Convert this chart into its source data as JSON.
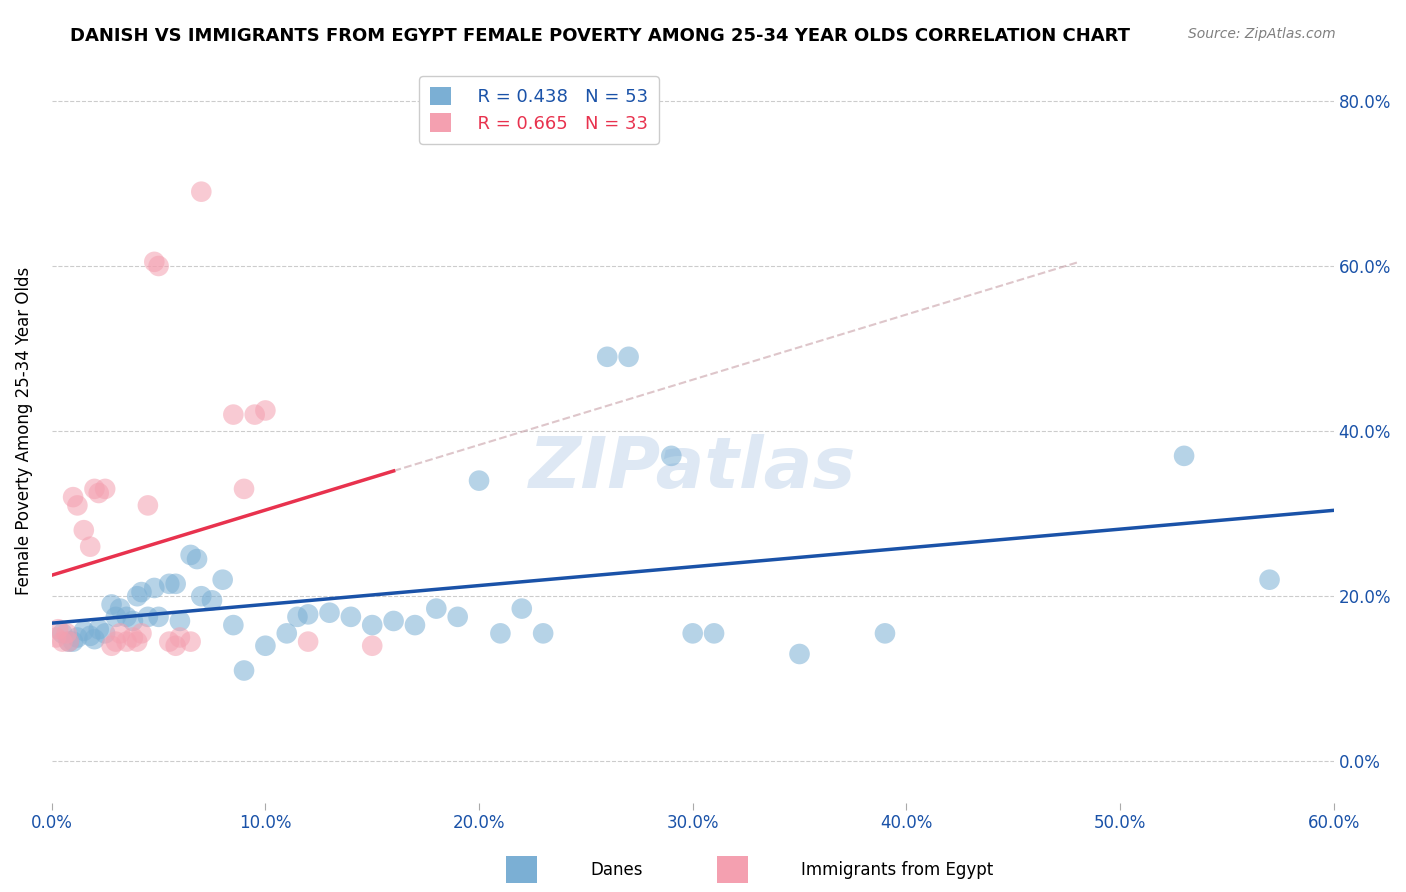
{
  "title": "DANISH VS IMMIGRANTS FROM EGYPT FEMALE POVERTY AMONG 25-34 YEAR OLDS CORRELATION CHART",
  "source": "Source: ZipAtlas.com",
  "xlabel": "",
  "ylabel": "Female Poverty Among 25-34 Year Olds",
  "xmin": 0.0,
  "xmax": 0.6,
  "ymin": -0.05,
  "ymax": 0.85,
  "watermark": "ZIPatlas",
  "blue_R": "R = 0.438",
  "blue_N": "N = 53",
  "pink_R": "R = 0.665",
  "pink_N": "N = 33",
  "blue_color": "#7bafd4",
  "pink_color": "#f4a0b0",
  "blue_line_color": "#1a52a8",
  "pink_line_color": "#e8324e",
  "danes_label": "Danes",
  "egypt_label": "Immigrants from Egypt",
  "blue_scatter": [
    [
      0.005,
      0.155
    ],
    [
      0.008,
      0.145
    ],
    [
      0.01,
      0.145
    ],
    [
      0.012,
      0.15
    ],
    [
      0.015,
      0.158
    ],
    [
      0.018,
      0.152
    ],
    [
      0.02,
      0.148
    ],
    [
      0.022,
      0.16
    ],
    [
      0.025,
      0.155
    ],
    [
      0.028,
      0.19
    ],
    [
      0.03,
      0.175
    ],
    [
      0.032,
      0.185
    ],
    [
      0.035,
      0.175
    ],
    [
      0.038,
      0.17
    ],
    [
      0.04,
      0.2
    ],
    [
      0.042,
      0.205
    ],
    [
      0.045,
      0.175
    ],
    [
      0.048,
      0.21
    ],
    [
      0.05,
      0.175
    ],
    [
      0.055,
      0.215
    ],
    [
      0.058,
      0.215
    ],
    [
      0.06,
      0.17
    ],
    [
      0.065,
      0.25
    ],
    [
      0.068,
      0.245
    ],
    [
      0.07,
      0.2
    ],
    [
      0.075,
      0.195
    ],
    [
      0.08,
      0.22
    ],
    [
      0.085,
      0.165
    ],
    [
      0.09,
      0.11
    ],
    [
      0.1,
      0.14
    ],
    [
      0.11,
      0.155
    ],
    [
      0.115,
      0.175
    ],
    [
      0.12,
      0.178
    ],
    [
      0.13,
      0.18
    ],
    [
      0.14,
      0.175
    ],
    [
      0.15,
      0.165
    ],
    [
      0.16,
      0.17
    ],
    [
      0.17,
      0.165
    ],
    [
      0.18,
      0.185
    ],
    [
      0.19,
      0.175
    ],
    [
      0.2,
      0.34
    ],
    [
      0.21,
      0.155
    ],
    [
      0.22,
      0.185
    ],
    [
      0.23,
      0.155
    ],
    [
      0.26,
      0.49
    ],
    [
      0.27,
      0.49
    ],
    [
      0.29,
      0.37
    ],
    [
      0.3,
      0.155
    ],
    [
      0.31,
      0.155
    ],
    [
      0.35,
      0.13
    ],
    [
      0.39,
      0.155
    ],
    [
      0.53,
      0.37
    ],
    [
      0.57,
      0.22
    ]
  ],
  "pink_scatter": [
    [
      0.002,
      0.15
    ],
    [
      0.003,
      0.16
    ],
    [
      0.005,
      0.145
    ],
    [
      0.007,
      0.155
    ],
    [
      0.008,
      0.145
    ],
    [
      0.01,
      0.32
    ],
    [
      0.012,
      0.31
    ],
    [
      0.015,
      0.28
    ],
    [
      0.018,
      0.26
    ],
    [
      0.02,
      0.33
    ],
    [
      0.022,
      0.325
    ],
    [
      0.025,
      0.33
    ],
    [
      0.028,
      0.14
    ],
    [
      0.03,
      0.145
    ],
    [
      0.032,
      0.155
    ],
    [
      0.035,
      0.145
    ],
    [
      0.038,
      0.15
    ],
    [
      0.04,
      0.145
    ],
    [
      0.042,
      0.155
    ],
    [
      0.045,
      0.31
    ],
    [
      0.048,
      0.605
    ],
    [
      0.05,
      0.6
    ],
    [
      0.055,
      0.145
    ],
    [
      0.058,
      0.14
    ],
    [
      0.06,
      0.15
    ],
    [
      0.065,
      0.145
    ],
    [
      0.07,
      0.69
    ],
    [
      0.085,
      0.42
    ],
    [
      0.09,
      0.33
    ],
    [
      0.095,
      0.42
    ],
    [
      0.1,
      0.425
    ],
    [
      0.12,
      0.145
    ],
    [
      0.15,
      0.14
    ]
  ]
}
